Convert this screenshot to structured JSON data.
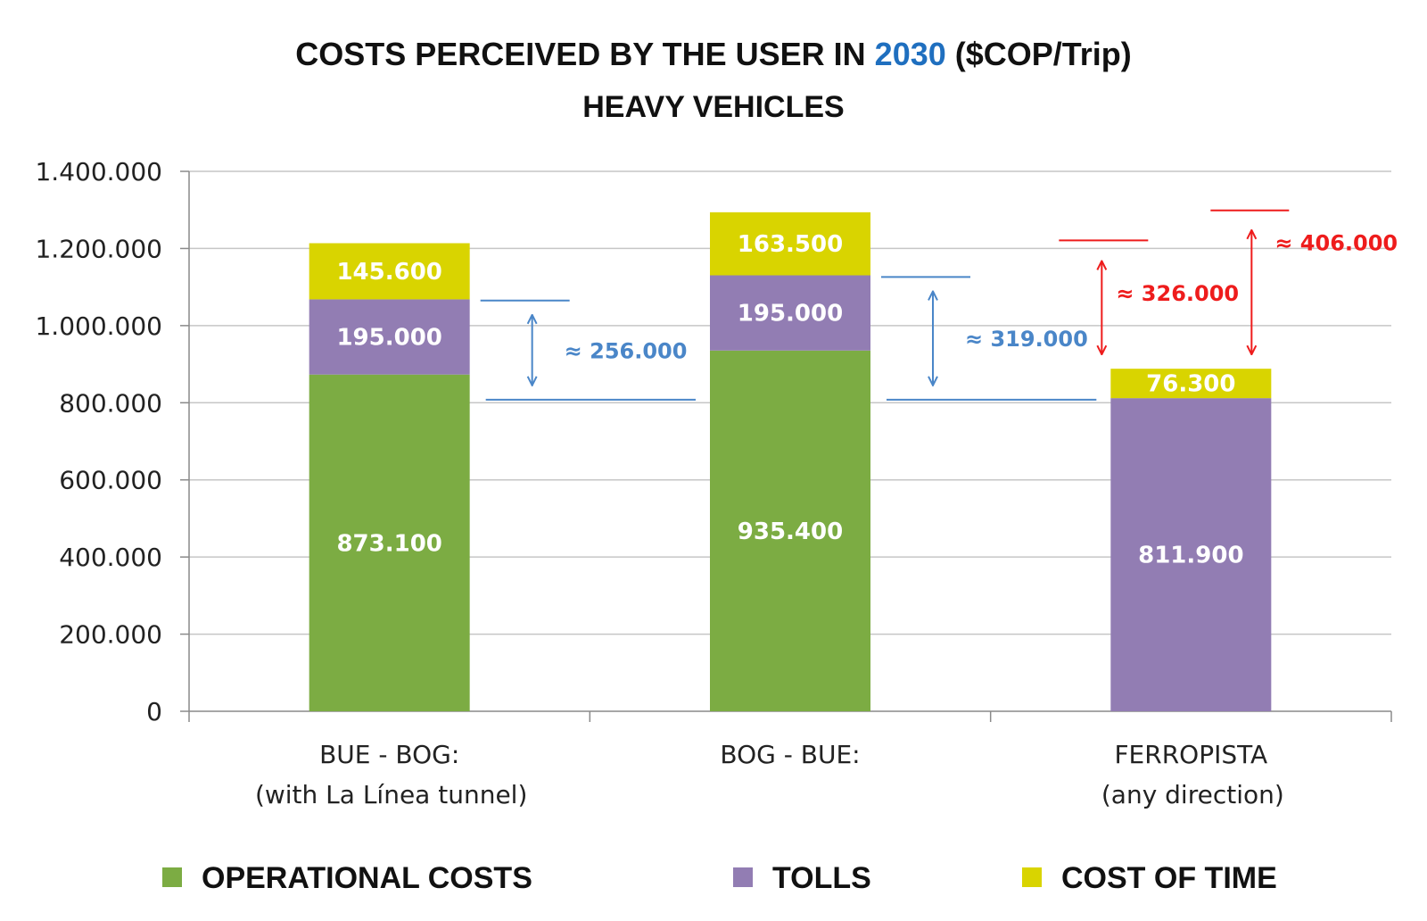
{
  "chart_data": {
    "type": "bar",
    "stacked": true,
    "title_parts": [
      {
        "text": "COSTS PERCEIVED BY THE USER IN ",
        "color": "#111111"
      },
      {
        "text": "2030",
        "color": "#1f6fbf"
      },
      {
        "text": " ($COP/Trip)",
        "color": "#111111"
      }
    ],
    "subtitle": "HEAVY VEHICLES",
    "categories": [
      [
        "BUE - BOG:",
        "(with La Línea tunnel)"
      ],
      [
        "BOG - BUE:"
      ],
      [
        "FERROPISTA",
        "(any direction)"
      ]
    ],
    "series": [
      {
        "name": "OPERATIONAL COSTS",
        "color": "#7cac43",
        "values": [
          873100,
          935400,
          0
        ]
      },
      {
        "name": "TOLLS",
        "color": "#927db3",
        "values": [
          195000,
          195000,
          811900
        ]
      },
      {
        "name": "COST OF TIME",
        "color": "#d9d400",
        "values": [
          145600,
          163500,
          76300
        ]
      }
    ],
    "data_labels": [
      [
        "873.100",
        "935.400",
        ""
      ],
      [
        "195.000",
        "195.000",
        "811.900"
      ],
      [
        "145.600",
        "163.500",
        "76.300"
      ]
    ],
    "ylim": [
      0,
      1400000
    ],
    "yticks": [
      {
        "value": 0,
        "label": "0"
      },
      {
        "value": 200000,
        "label": "200.000"
      },
      {
        "value": 400000,
        "label": "400.000"
      },
      {
        "value": 600000,
        "label": "600.000"
      },
      {
        "value": 800000,
        "label": "800.000"
      },
      {
        "value": 1000000,
        "label": "1.000.000"
      },
      {
        "value": 1200000,
        "label": "1.200.000"
      },
      {
        "value": 1400000,
        "label": "1.400.000"
      }
    ],
    "grid": true,
    "legend_position": "bottom",
    "annotations": [
      {
        "label": "≈ 256.000",
        "color": "#4a86c8",
        "from": 808000,
        "to": 1065000,
        "after_category": 0
      },
      {
        "label": "≈ 319.000",
        "color": "#4a86c8",
        "from": 808000,
        "to": 1126000,
        "after_category": 1
      },
      {
        "label": "≈ 326.000",
        "color": "#ee1c1c",
        "from": 888200,
        "to": 1214000,
        "after_category": 2
      },
      {
        "label": "≈ 406.000",
        "color": "#ee1c1c",
        "from": 888200,
        "to": 1294000,
        "after_category": 2
      }
    ]
  }
}
